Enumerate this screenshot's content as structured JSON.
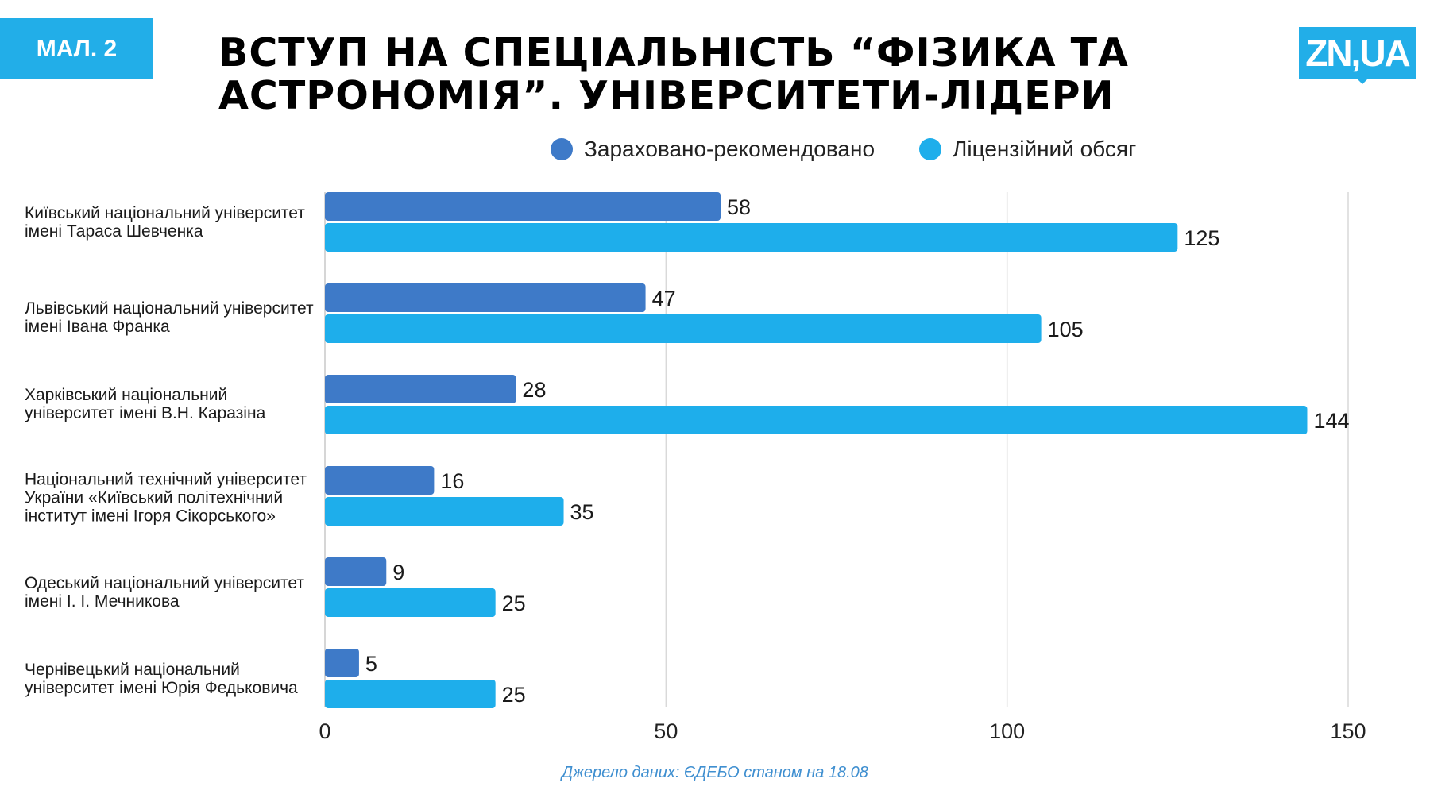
{
  "badge": "МАЛ. 2",
  "title_line1": "ВСТУП НА СПЕЦІАЛЬНІСТЬ “ФІЗИКА ТА",
  "title_line2": "АСТРОНОМІЯ”. УНІВЕРСИТЕТИ-ЛІДЕРИ",
  "logo": "ZN,UA",
  "source": "Джерело даних:  ЄДЕБО станом на 18.08",
  "colors": {
    "series1": "#3e7ac8",
    "series2": "#1eaeeb",
    "grid": "#d9d9d9",
    "brand": "#22aee8"
  },
  "chart_data": {
    "type": "bar",
    "orientation": "horizontal",
    "categories": [
      "Київський національний університет імені Тараса Шевченка",
      "Львівський національний університет імені Івана Франка",
      "Харківський національний університет імені В.Н. Каразіна",
      "Національний технічний університет України «Київський політехнічний інститут імені Ігоря Сікорського»",
      "Одеський національний університет імені І. І. Мечникова",
      "Чернівецький національний університет імені Юрія Федьковича"
    ],
    "series": [
      {
        "name": "Зараховано-рекомендовано",
        "values": [
          58,
          47,
          28,
          16,
          9,
          5
        ]
      },
      {
        "name": "Ліцензійний обсяг",
        "values": [
          125,
          105,
          144,
          35,
          25,
          25
        ]
      }
    ],
    "xlim": [
      0,
      150
    ],
    "xticks": [
      0,
      50,
      100,
      150
    ],
    "legend_position": "top",
    "grid": true
  }
}
